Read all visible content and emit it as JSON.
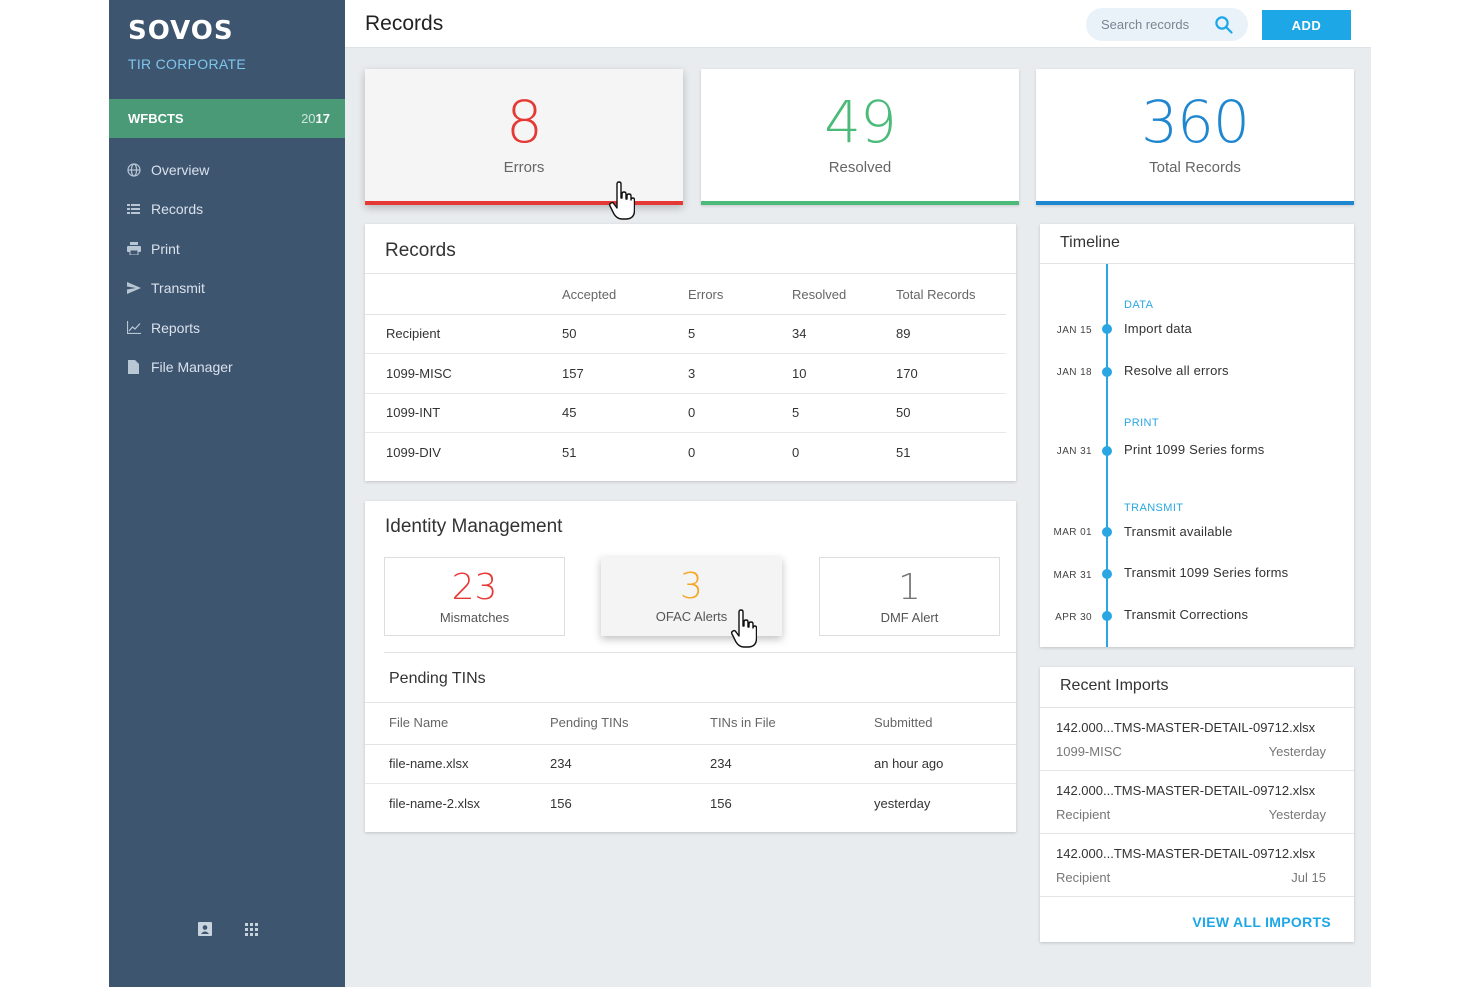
{
  "sidebar": {
    "logo": "SOVOS",
    "company": "TIR CORPORATE",
    "tenant": {
      "name": "WFBCTS",
      "year_prefix": "20",
      "year_suffix": "17"
    },
    "items": [
      {
        "label": "Overview",
        "icon": "globe-icon"
      },
      {
        "label": "Records",
        "icon": "list-icon"
      },
      {
        "label": "Print",
        "icon": "printer-icon"
      },
      {
        "label": "Transmit",
        "icon": "send-icon"
      },
      {
        "label": "Reports",
        "icon": "chart-icon"
      },
      {
        "label": "File Manager",
        "icon": "file-icon"
      }
    ],
    "footer_icons": [
      "contact-card-icon",
      "apps-grid-icon"
    ]
  },
  "header": {
    "title": "Records",
    "search_placeholder": "Search records",
    "add_label": "ADD"
  },
  "stats": [
    {
      "value": "8",
      "label": "Errors",
      "color": "#e53935"
    },
    {
      "value": "49",
      "label": "Resolved",
      "color": "#4cbb7a"
    },
    {
      "value": "360",
      "label": "Total Records",
      "color": "#1f86d0"
    }
  ],
  "records": {
    "title": "Records",
    "columns": [
      "",
      "Accepted",
      "Errors",
      "Resolved",
      "Total Records"
    ],
    "rows": [
      [
        "Recipient",
        "50",
        "5",
        "34",
        "89"
      ],
      [
        "1099-MISC",
        "157",
        "3",
        "10",
        "170"
      ],
      [
        "1099-INT",
        "45",
        "0",
        "5",
        "50"
      ],
      [
        "1099-DIV",
        "51",
        "0",
        "0",
        "51"
      ]
    ]
  },
  "identity": {
    "title": "Identity Management",
    "boxes": [
      {
        "value": "23",
        "label": "Mismatches",
        "color": "#e53935"
      },
      {
        "value": "3",
        "label": "OFAC Alerts",
        "color": "#f5a623"
      },
      {
        "value": "1",
        "label": "DMF Alert",
        "color": "#777777"
      }
    ],
    "pending": {
      "title": "Pending TINs",
      "columns": [
        "File Name",
        "Pending TINs",
        "TINs in File",
        "Submitted"
      ],
      "rows": [
        [
          "file-name.xlsx",
          "234",
          "234",
          "an hour ago"
        ],
        [
          "file-name-2.xlsx",
          "156",
          "156",
          "yesterday"
        ]
      ]
    }
  },
  "timeline": {
    "title": "Timeline",
    "sections": [
      "DATA",
      "PRINT",
      "TRANSMIT"
    ],
    "events": [
      {
        "date": "JAN 15",
        "text": "Import data"
      },
      {
        "date": "JAN 18",
        "text": "Resolve all errors"
      },
      {
        "date": "JAN 31",
        "text": "Print 1099 Series forms"
      },
      {
        "date": "MAR 01",
        "text": "Transmit available"
      },
      {
        "date": "MAR 31",
        "text": "Transmit 1099 Series forms"
      },
      {
        "date": "APR 30",
        "text": "Transmit Corrections"
      }
    ]
  },
  "imports": {
    "title": "Recent Imports",
    "items": [
      {
        "name": "142.000...TMS-MASTER-DETAIL-09712.xlsx",
        "type": "1099-MISC",
        "date": "Yesterday"
      },
      {
        "name": "142.000...TMS-MASTER-DETAIL-09712.xlsx",
        "type": "Recipient",
        "date": "Yesterday"
      },
      {
        "name": "142.000...TMS-MASTER-DETAIL-09712.xlsx",
        "type": "Recipient",
        "date": "Jul 15"
      }
    ],
    "view_all": "VIEW ALL IMPORTS"
  },
  "colors": {
    "sidebar": "#3e5570",
    "tenant": "#4a9a78",
    "accent": "#1ea7e6",
    "error": "#e53935",
    "resolved": "#4cbb7a",
    "total": "#1f86d0",
    "warning": "#f5a623"
  }
}
